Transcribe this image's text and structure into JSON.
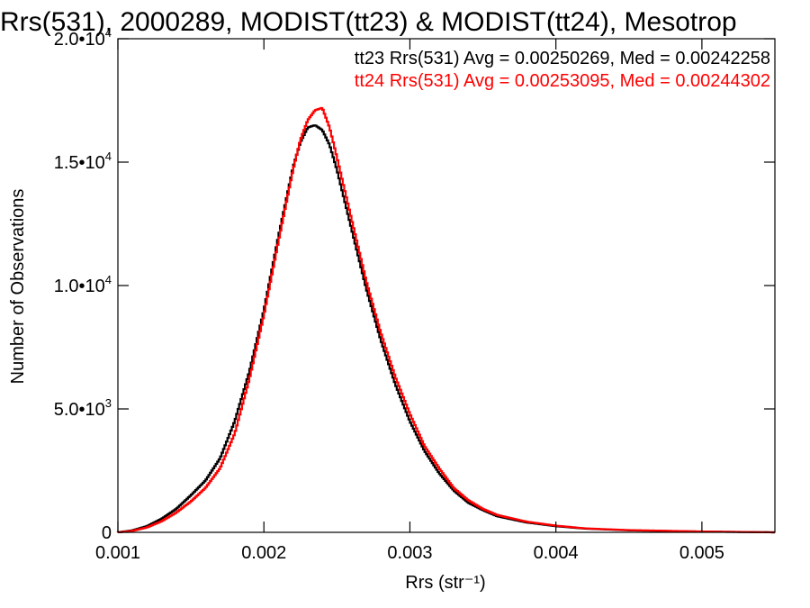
{
  "chart_data": {
    "type": "line",
    "title": "Rrs(531), 2000289, MODIST(tt23) & MODIST(tt24), Mesotrop",
    "xlabel": "Rrs (str⁻¹)",
    "ylabel": "Number of Observations",
    "xlim": [
      0.001,
      0.0055
    ],
    "ylim": [
      0,
      20000
    ],
    "x_ticks": [
      {
        "value": 0.001,
        "label": "0.001"
      },
      {
        "value": 0.002,
        "label": "0.002"
      },
      {
        "value": 0.003,
        "label": "0.003"
      },
      {
        "value": 0.004,
        "label": "0.004"
      },
      {
        "value": 0.005,
        "label": "0.005"
      }
    ],
    "y_ticks": [
      {
        "value": 0,
        "mantissa": "0",
        "exp": ""
      },
      {
        "value": 5000,
        "mantissa": "5.0•10",
        "exp": "3"
      },
      {
        "value": 10000,
        "mantissa": "1.0•10",
        "exp": "4"
      },
      {
        "value": 15000,
        "mantissa": "1.5•10",
        "exp": "4"
      },
      {
        "value": 20000,
        "mantissa": "2.0•10",
        "exp": "4"
      }
    ],
    "grid": false,
    "legend_position": "top-right",
    "series": [
      {
        "name": "tt23",
        "color": "#000000",
        "label": "tt23 Rrs(531) Avg = 0.00250269, Med = 0.00242258",
        "x": [
          0.001,
          0.0011,
          0.0012,
          0.0013,
          0.0014,
          0.0015,
          0.0016,
          0.0017,
          0.0018,
          0.0019,
          0.002,
          0.0021,
          0.0022,
          0.00225,
          0.0023,
          0.00235,
          0.0024,
          0.00245,
          0.0025,
          0.0026,
          0.0027,
          0.0028,
          0.0029,
          0.003,
          0.0031,
          0.0032,
          0.0033,
          0.0034,
          0.0035,
          0.0036,
          0.0038,
          0.004,
          0.0042,
          0.0045,
          0.005,
          0.0055
        ],
        "y": [
          0,
          80,
          250,
          550,
          950,
          1500,
          2100,
          3000,
          4500,
          6500,
          9000,
          12000,
          14800,
          15800,
          16400,
          16500,
          16300,
          15700,
          14700,
          12300,
          9900,
          7800,
          6000,
          4500,
          3300,
          2400,
          1700,
          1200,
          900,
          650,
          400,
          250,
          150,
          80,
          30,
          0
        ]
      },
      {
        "name": "tt24",
        "color": "#ff0000",
        "label": "tt24 Rrs(531) Avg = 0.00253095, Med = 0.00244302",
        "x": [
          0.001,
          0.0011,
          0.0012,
          0.0013,
          0.0014,
          0.0015,
          0.0016,
          0.0017,
          0.0018,
          0.0019,
          0.002,
          0.0021,
          0.0022,
          0.00225,
          0.0023,
          0.00235,
          0.0024,
          0.00245,
          0.0025,
          0.0026,
          0.0027,
          0.0028,
          0.0029,
          0.003,
          0.0031,
          0.0032,
          0.0033,
          0.0034,
          0.0035,
          0.0036,
          0.0038,
          0.004,
          0.0042,
          0.0045,
          0.005,
          0.0055
        ],
        "y": [
          0,
          60,
          200,
          450,
          800,
          1250,
          1800,
          2600,
          4000,
          6200,
          8800,
          11800,
          14700,
          15900,
          16700,
          17100,
          17200,
          16400,
          15200,
          12700,
          10200,
          8100,
          6300,
          4800,
          3500,
          2600,
          1800,
          1300,
          950,
          700,
          430,
          270,
          160,
          90,
          35,
          0
        ]
      }
    ]
  }
}
